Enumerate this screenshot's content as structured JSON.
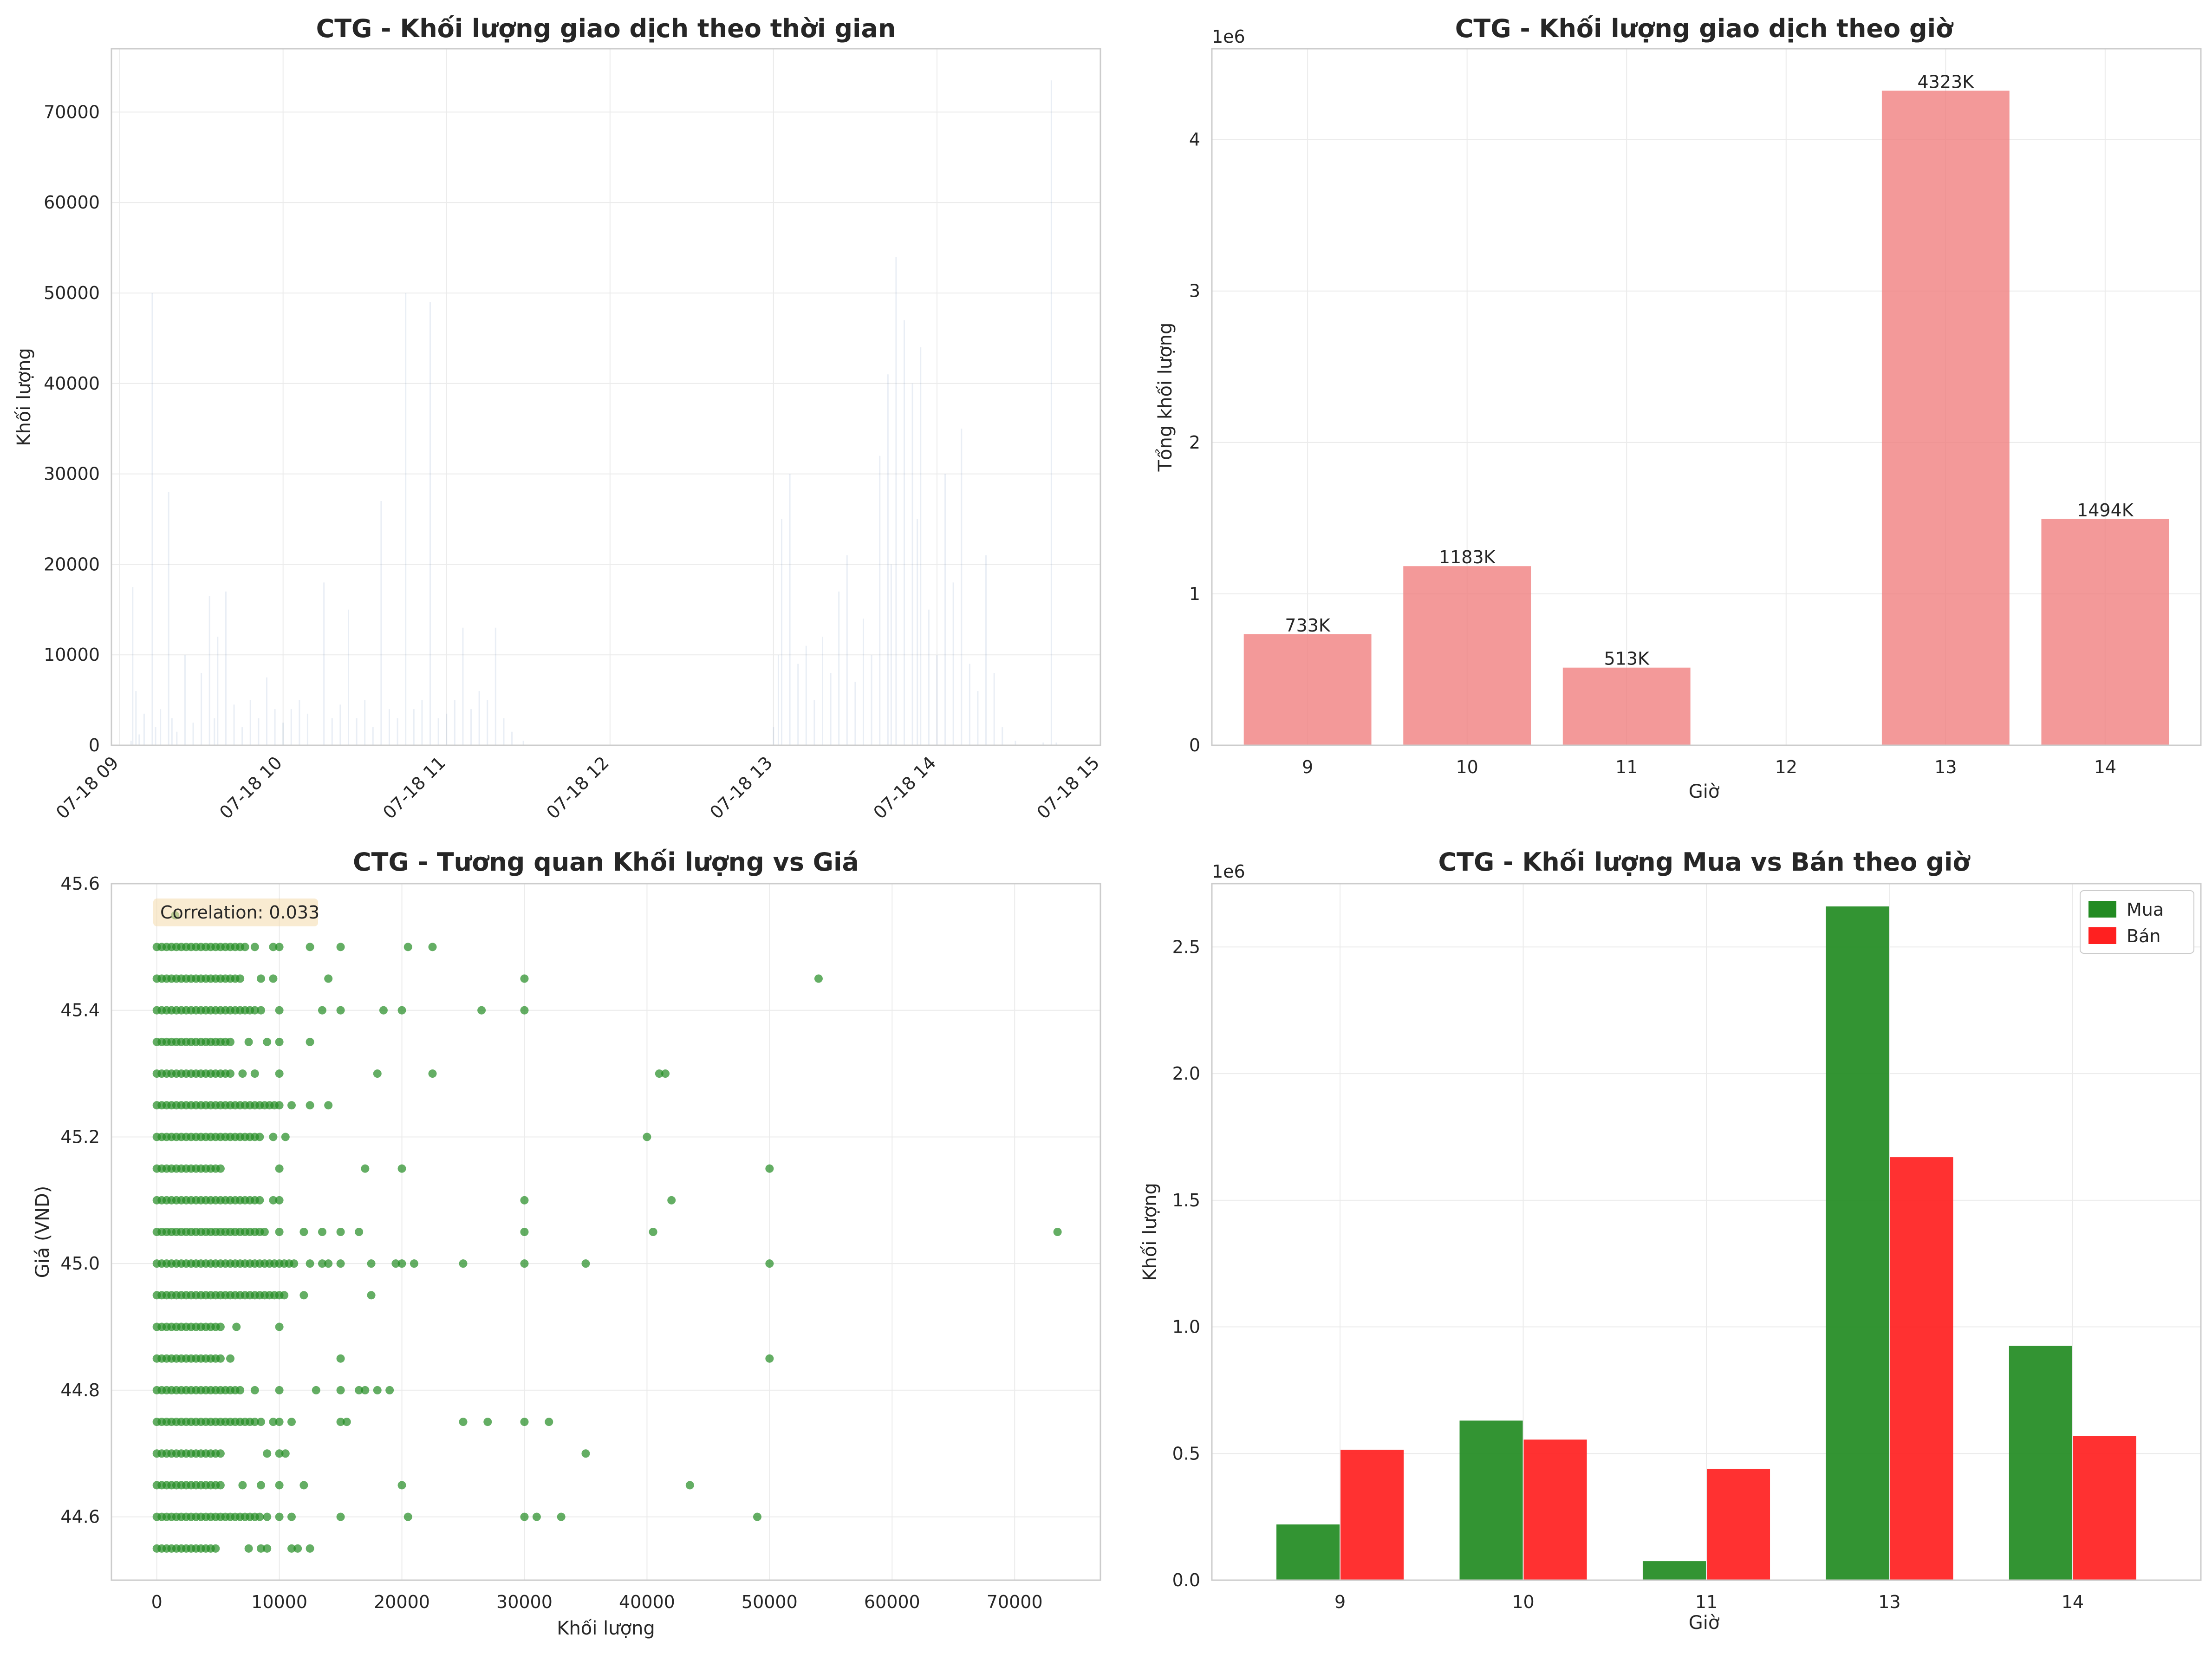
{
  "chart_data": [
    {
      "type": "line",
      "title": "CTG - Khối lượng giao dịch theo thời gian",
      "xlabel": "",
      "ylabel": "Khối lượng",
      "x_ticks": [
        "07-18 09",
        "07-18 10",
        "07-18 11",
        "07-18 12",
        "07-18 13",
        "07-18 14",
        "07-18 15"
      ],
      "xlim": [
        8.95,
        15.0
      ],
      "ylim": [
        0,
        77000
      ],
      "y_ticks": [
        0,
        10000,
        20000,
        30000,
        40000,
        50000,
        60000,
        70000
      ],
      "grid": true,
      "line_color": "#4c72b0",
      "points": [
        [
          9.07,
          500
        ],
        [
          9.08,
          17500
        ],
        [
          9.1,
          6000
        ],
        [
          9.12,
          1200
        ],
        [
          9.15,
          3500
        ],
        [
          9.2,
          50000
        ],
        [
          9.22,
          2000
        ],
        [
          9.25,
          4000
        ],
        [
          9.3,
          28000
        ],
        [
          9.32,
          3000
        ],
        [
          9.35,
          1500
        ],
        [
          9.4,
          10000
        ],
        [
          9.45,
          2500
        ],
        [
          9.5,
          8000
        ],
        [
          9.55,
          16500
        ],
        [
          9.58,
          3000
        ],
        [
          9.6,
          12000
        ],
        [
          9.65,
          17000
        ],
        [
          9.7,
          4500
        ],
        [
          9.75,
          2000
        ],
        [
          9.8,
          5000
        ],
        [
          9.85,
          3000
        ],
        [
          9.9,
          7500
        ],
        [
          9.95,
          4000
        ],
        [
          10.0,
          2500
        ],
        [
          10.05,
          4000
        ],
        [
          10.1,
          5000
        ],
        [
          10.15,
          3500
        ],
        [
          10.25,
          18000
        ],
        [
          10.3,
          3000
        ],
        [
          10.35,
          4500
        ],
        [
          10.4,
          15000
        ],
        [
          10.45,
          3000
        ],
        [
          10.5,
          5000
        ],
        [
          10.55,
          2000
        ],
        [
          10.6,
          27000
        ],
        [
          10.65,
          4000
        ],
        [
          10.7,
          3000
        ],
        [
          10.75,
          50000
        ],
        [
          10.8,
          4000
        ],
        [
          10.85,
          5000
        ],
        [
          10.9,
          49000
        ],
        [
          10.95,
          3000
        ],
        [
          11.0,
          3500
        ],
        [
          11.05,
          5000
        ],
        [
          11.1,
          13000
        ],
        [
          11.15,
          4000
        ],
        [
          11.2,
          6000
        ],
        [
          11.25,
          5000
        ],
        [
          11.3,
          13000
        ],
        [
          11.35,
          3000
        ],
        [
          11.4,
          1500
        ],
        [
          11.47,
          500
        ],
        [
          13.0,
          2000
        ],
        [
          13.03,
          10000
        ],
        [
          13.05,
          25000
        ],
        [
          13.1,
          30000
        ],
        [
          13.15,
          9000
        ],
        [
          13.2,
          11000
        ],
        [
          13.25,
          5000
        ],
        [
          13.3,
          12000
        ],
        [
          13.35,
          8000
        ],
        [
          13.4,
          17000
        ],
        [
          13.45,
          21000
        ],
        [
          13.5,
          7000
        ],
        [
          13.55,
          14000
        ],
        [
          13.6,
          10000
        ],
        [
          13.65,
          32000
        ],
        [
          13.7,
          41000
        ],
        [
          13.72,
          20000
        ],
        [
          13.75,
          54000
        ],
        [
          13.8,
          47000
        ],
        [
          13.85,
          40000
        ],
        [
          13.88,
          25000
        ],
        [
          13.9,
          44000
        ],
        [
          13.95,
          15000
        ],
        [
          14.0,
          10000
        ],
        [
          14.05,
          30000
        ],
        [
          14.1,
          18000
        ],
        [
          14.15,
          35000
        ],
        [
          14.2,
          9000
        ],
        [
          14.25,
          6000
        ],
        [
          14.3,
          21000
        ],
        [
          14.35,
          8000
        ],
        [
          14.4,
          2000
        ],
        [
          14.48,
          500
        ],
        [
          14.65,
          300
        ],
        [
          14.7,
          73500
        ],
        [
          14.73,
          300
        ]
      ]
    },
    {
      "type": "bar",
      "title": "CTG - Khối lượng giao dịch theo giờ",
      "xlabel": "Giờ",
      "ylabel": "Tổng khối lượng",
      "offset_label": "1e6",
      "categories": [
        "9",
        "10",
        "11",
        "12",
        "13",
        "14"
      ],
      "values": [
        733000,
        1183000,
        513000,
        0,
        4323000,
        1494000
      ],
      "bar_labels": [
        "733K",
        "1183K",
        "513K",
        "",
        "4323K",
        "1494K"
      ],
      "ylim": [
        0,
        4.6
      ],
      "y_ticks": [
        0,
        1,
        2,
        3,
        4
      ],
      "bar_color": "#f08080",
      "grid": true
    },
    {
      "type": "scatter",
      "title": "CTG - Tương quan Khối lượng vs Giá",
      "xlabel": "Khối lượng",
      "ylabel": "Giá (VND)",
      "annotation": "Correlation: 0.033",
      "xlim": [
        -3700,
        77000
      ],
      "ylim": [
        44.5,
        45.6
      ],
      "x_ticks": [
        0,
        10000,
        20000,
        30000,
        40000,
        50000,
        60000,
        70000
      ],
      "y_ticks": [
        44.6,
        44.8,
        45.0,
        45.2,
        45.4,
        45.6
      ],
      "marker_color": "#228b22",
      "grid": true,
      "dense_bands": [
        {
          "y": 44.55,
          "xmax": 5000
        },
        {
          "y": 44.6,
          "xmax": 8500
        },
        {
          "y": 44.65,
          "xmax": 5500
        },
        {
          "y": 44.7,
          "xmax": 5500
        },
        {
          "y": 44.75,
          "xmax": 8000
        },
        {
          "y": 44.8,
          "xmax": 7000
        },
        {
          "y": 44.85,
          "xmax": 5500
        },
        {
          "y": 44.9,
          "xmax": 5500
        },
        {
          "y": 44.95,
          "xmax": 10500
        },
        {
          "y": 45.0,
          "xmax": 11500
        },
        {
          "y": 45.05,
          "xmax": 9000
        },
        {
          "y": 45.1,
          "xmax": 8500
        },
        {
          "y": 45.15,
          "xmax": 5500
        },
        {
          "y": 45.2,
          "xmax": 8500
        },
        {
          "y": 45.25,
          "xmax": 10000
        },
        {
          "y": 45.3,
          "xmax": 6000
        },
        {
          "y": 45.35,
          "xmax": 6000
        },
        {
          "y": 45.4,
          "xmax": 8000
        },
        {
          "y": 45.45,
          "xmax": 7000
        },
        {
          "y": 45.5,
          "xmax": 7500
        }
      ],
      "points": [
        [
          7500,
          44.55
        ],
        [
          8500,
          44.55
        ],
        [
          9000,
          44.55
        ],
        [
          11000,
          44.55
        ],
        [
          11500,
          44.55
        ],
        [
          12500,
          44.55
        ],
        [
          9000,
          44.6
        ],
        [
          10000,
          44.6
        ],
        [
          11000,
          44.6
        ],
        [
          15000,
          44.6
        ],
        [
          20500,
          44.6
        ],
        [
          30000,
          44.6
        ],
        [
          31000,
          44.6
        ],
        [
          33000,
          44.6
        ],
        [
          49000,
          44.6
        ],
        [
          7000,
          44.65
        ],
        [
          8500,
          44.65
        ],
        [
          10000,
          44.65
        ],
        [
          12000,
          44.65
        ],
        [
          20000,
          44.65
        ],
        [
          43500,
          44.65
        ],
        [
          9000,
          44.7
        ],
        [
          10000,
          44.7
        ],
        [
          10500,
          44.7
        ],
        [
          35000,
          44.7
        ],
        [
          8500,
          44.75
        ],
        [
          9500,
          44.75
        ],
        [
          10000,
          44.75
        ],
        [
          11000,
          44.75
        ],
        [
          15000,
          44.75
        ],
        [
          15500,
          44.75
        ],
        [
          25000,
          44.75
        ],
        [
          27000,
          44.75
        ],
        [
          30000,
          44.75
        ],
        [
          32000,
          44.75
        ],
        [
          8000,
          44.8
        ],
        [
          10000,
          44.8
        ],
        [
          13000,
          44.8
        ],
        [
          15000,
          44.8
        ],
        [
          16500,
          44.8
        ],
        [
          17000,
          44.8
        ],
        [
          18000,
          44.8
        ],
        [
          19000,
          44.8
        ],
        [
          6000,
          44.85
        ],
        [
          15000,
          44.85
        ],
        [
          50000,
          44.85
        ],
        [
          6500,
          44.9
        ],
        [
          10000,
          44.9
        ],
        [
          12000,
          44.95
        ],
        [
          17500,
          44.95
        ],
        [
          12500,
          45.0
        ],
        [
          13500,
          45.0
        ],
        [
          14000,
          45.0
        ],
        [
          15000,
          45.0
        ],
        [
          17500,
          45.0
        ],
        [
          19500,
          45.0
        ],
        [
          20000,
          45.0
        ],
        [
          21000,
          45.0
        ],
        [
          25000,
          45.0
        ],
        [
          30000,
          45.0
        ],
        [
          35000,
          45.0
        ],
        [
          50000,
          45.0
        ],
        [
          10000,
          45.05
        ],
        [
          12000,
          45.05
        ],
        [
          13500,
          45.05
        ],
        [
          15000,
          45.05
        ],
        [
          16500,
          45.05
        ],
        [
          30000,
          45.05
        ],
        [
          40500,
          45.05
        ],
        [
          73500,
          45.05
        ],
        [
          9500,
          45.1
        ],
        [
          10000,
          45.1
        ],
        [
          30000,
          45.1
        ],
        [
          42000,
          45.1
        ],
        [
          10000,
          45.15
        ],
        [
          17000,
          45.15
        ],
        [
          20000,
          45.15
        ],
        [
          50000,
          45.15
        ],
        [
          9500,
          45.2
        ],
        [
          10500,
          45.2
        ],
        [
          40000,
          45.2
        ],
        [
          11000,
          45.25
        ],
        [
          12500,
          45.25
        ],
        [
          14000,
          45.25
        ],
        [
          7000,
          45.3
        ],
        [
          8000,
          45.3
        ],
        [
          10000,
          45.3
        ],
        [
          18000,
          45.3
        ],
        [
          22500,
          45.3
        ],
        [
          41000,
          45.3
        ],
        [
          41500,
          45.3
        ],
        [
          7500,
          45.35
        ],
        [
          9000,
          45.35
        ],
        [
          10000,
          45.35
        ],
        [
          12500,
          45.35
        ],
        [
          8500,
          45.4
        ],
        [
          10000,
          45.4
        ],
        [
          13500,
          45.4
        ],
        [
          15000,
          45.4
        ],
        [
          18500,
          45.4
        ],
        [
          20000,
          45.4
        ],
        [
          26500,
          45.4
        ],
        [
          30000,
          45.4
        ],
        [
          8500,
          45.45
        ],
        [
          9500,
          45.45
        ],
        [
          14000,
          45.45
        ],
        [
          30000,
          45.45
        ],
        [
          54000,
          45.45
        ],
        [
          8000,
          45.5
        ],
        [
          9500,
          45.5
        ],
        [
          10000,
          45.5
        ],
        [
          12500,
          45.5
        ],
        [
          15000,
          45.5
        ],
        [
          20500,
          45.5
        ],
        [
          22500,
          45.5
        ],
        [
          1500,
          45.55
        ]
      ]
    },
    {
      "type": "bar",
      "title": "CTG - Khối lượng Mua vs Bán theo giờ",
      "xlabel": "Giờ",
      "ylabel": "Khối lượng",
      "offset_label": "1e6",
      "categories": [
        "9",
        "10",
        "11",
        "13",
        "14"
      ],
      "ylim": [
        0,
        2.75
      ],
      "y_ticks": [
        0.0,
        0.5,
        1.0,
        1.5,
        2.0,
        2.5
      ],
      "legend_position": "top-right",
      "grid": true,
      "series": [
        {
          "name": "Mua",
          "color": "#228b22",
          "values": [
            220000,
            630000,
            75000,
            2660000,
            925000
          ]
        },
        {
          "name": "Bán",
          "color": "#ff2020",
          "values": [
            515000,
            555000,
            440000,
            1670000,
            570000
          ]
        }
      ]
    }
  ]
}
